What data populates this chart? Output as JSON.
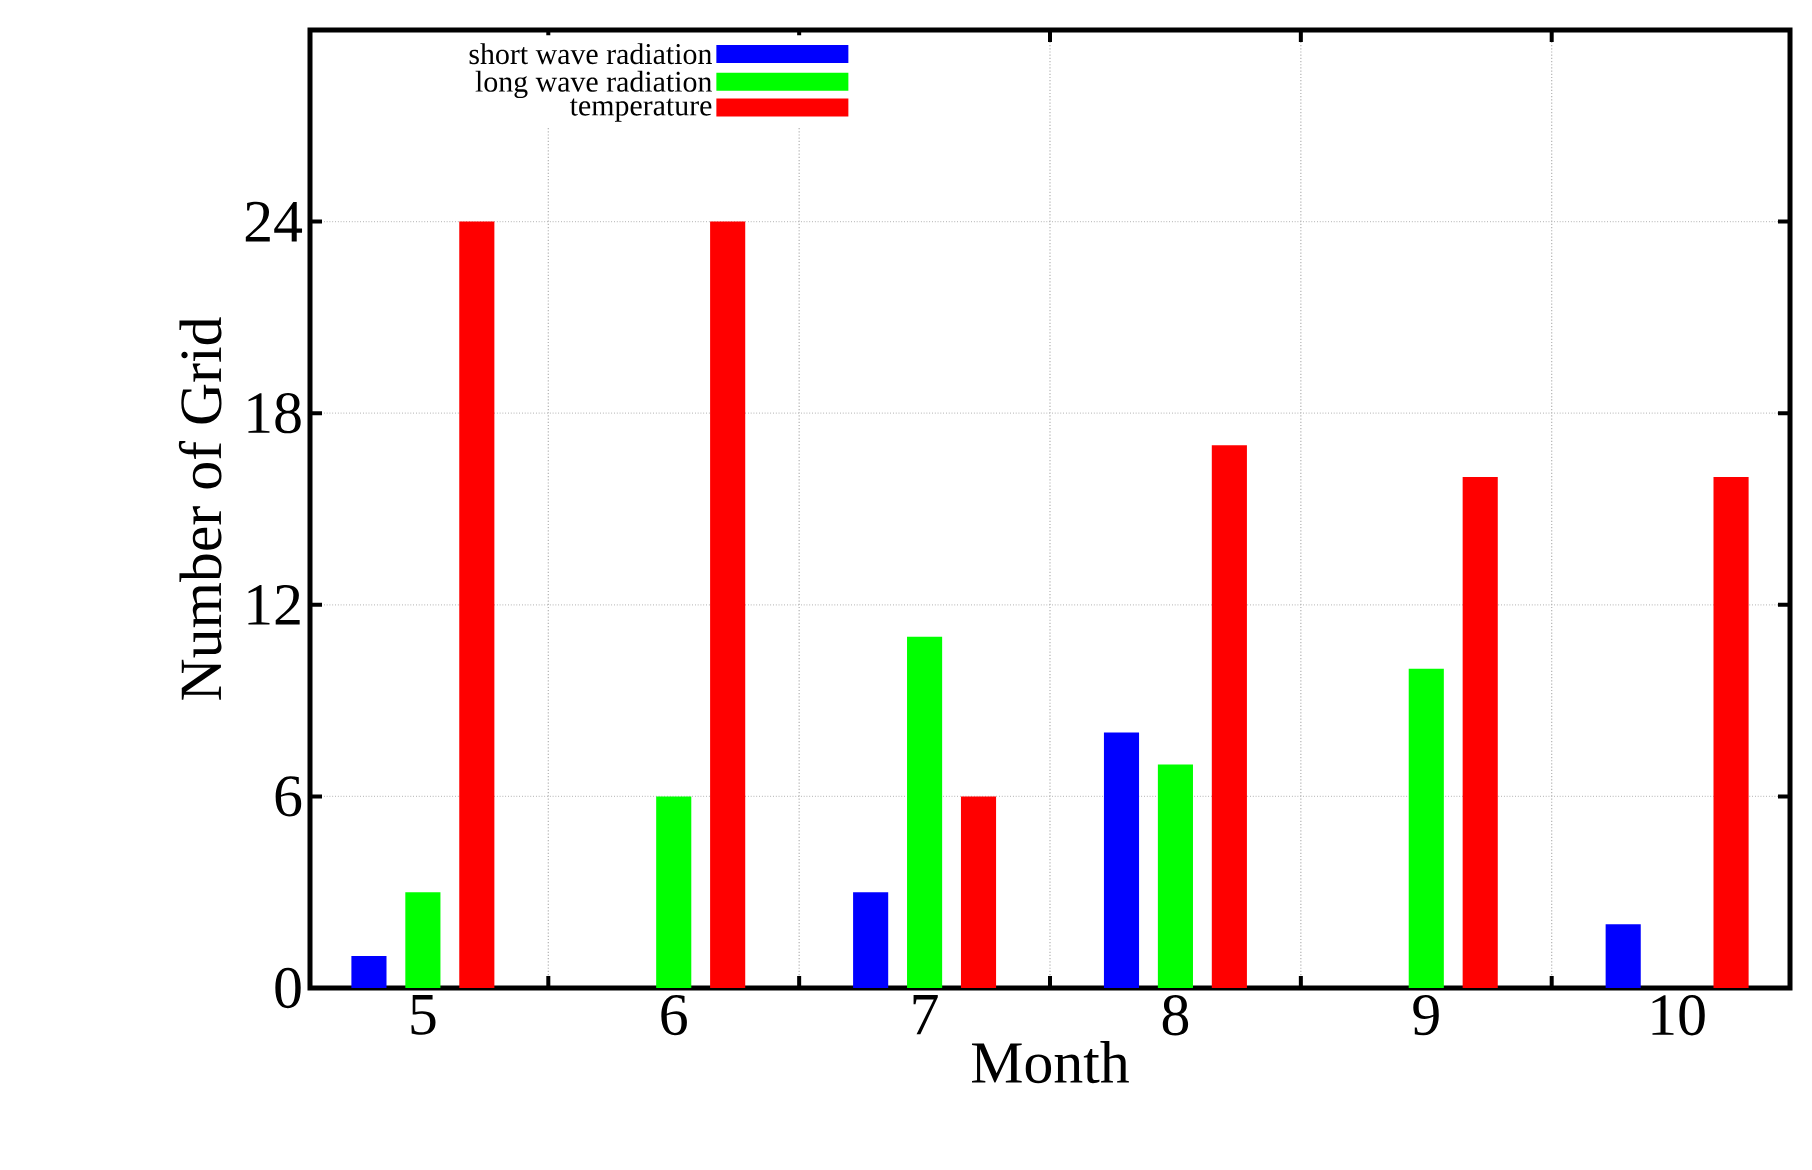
{
  "chart_data": {
    "type": "bar",
    "xlabel": "Month",
    "ylabel": "Number of Grid",
    "categories": [
      "5",
      "6",
      "7",
      "8",
      "9",
      "10"
    ],
    "series": [
      {
        "name": "short wave radiation",
        "color": "#0000ff",
        "values": [
          1,
          0,
          3,
          8,
          0,
          2
        ]
      },
      {
        "name": "long wave radiation",
        "color": "#00ff00",
        "values": [
          3,
          6,
          11,
          7,
          10,
          0
        ]
      },
      {
        "name": "temperature",
        "color": "#ff0000",
        "values": [
          24,
          24,
          6,
          17,
          16,
          16
        ]
      }
    ],
    "ylim": [
      0,
      30
    ],
    "yticks": [
      0,
      6,
      12,
      18,
      24
    ],
    "grid": true,
    "legend": "top left"
  }
}
